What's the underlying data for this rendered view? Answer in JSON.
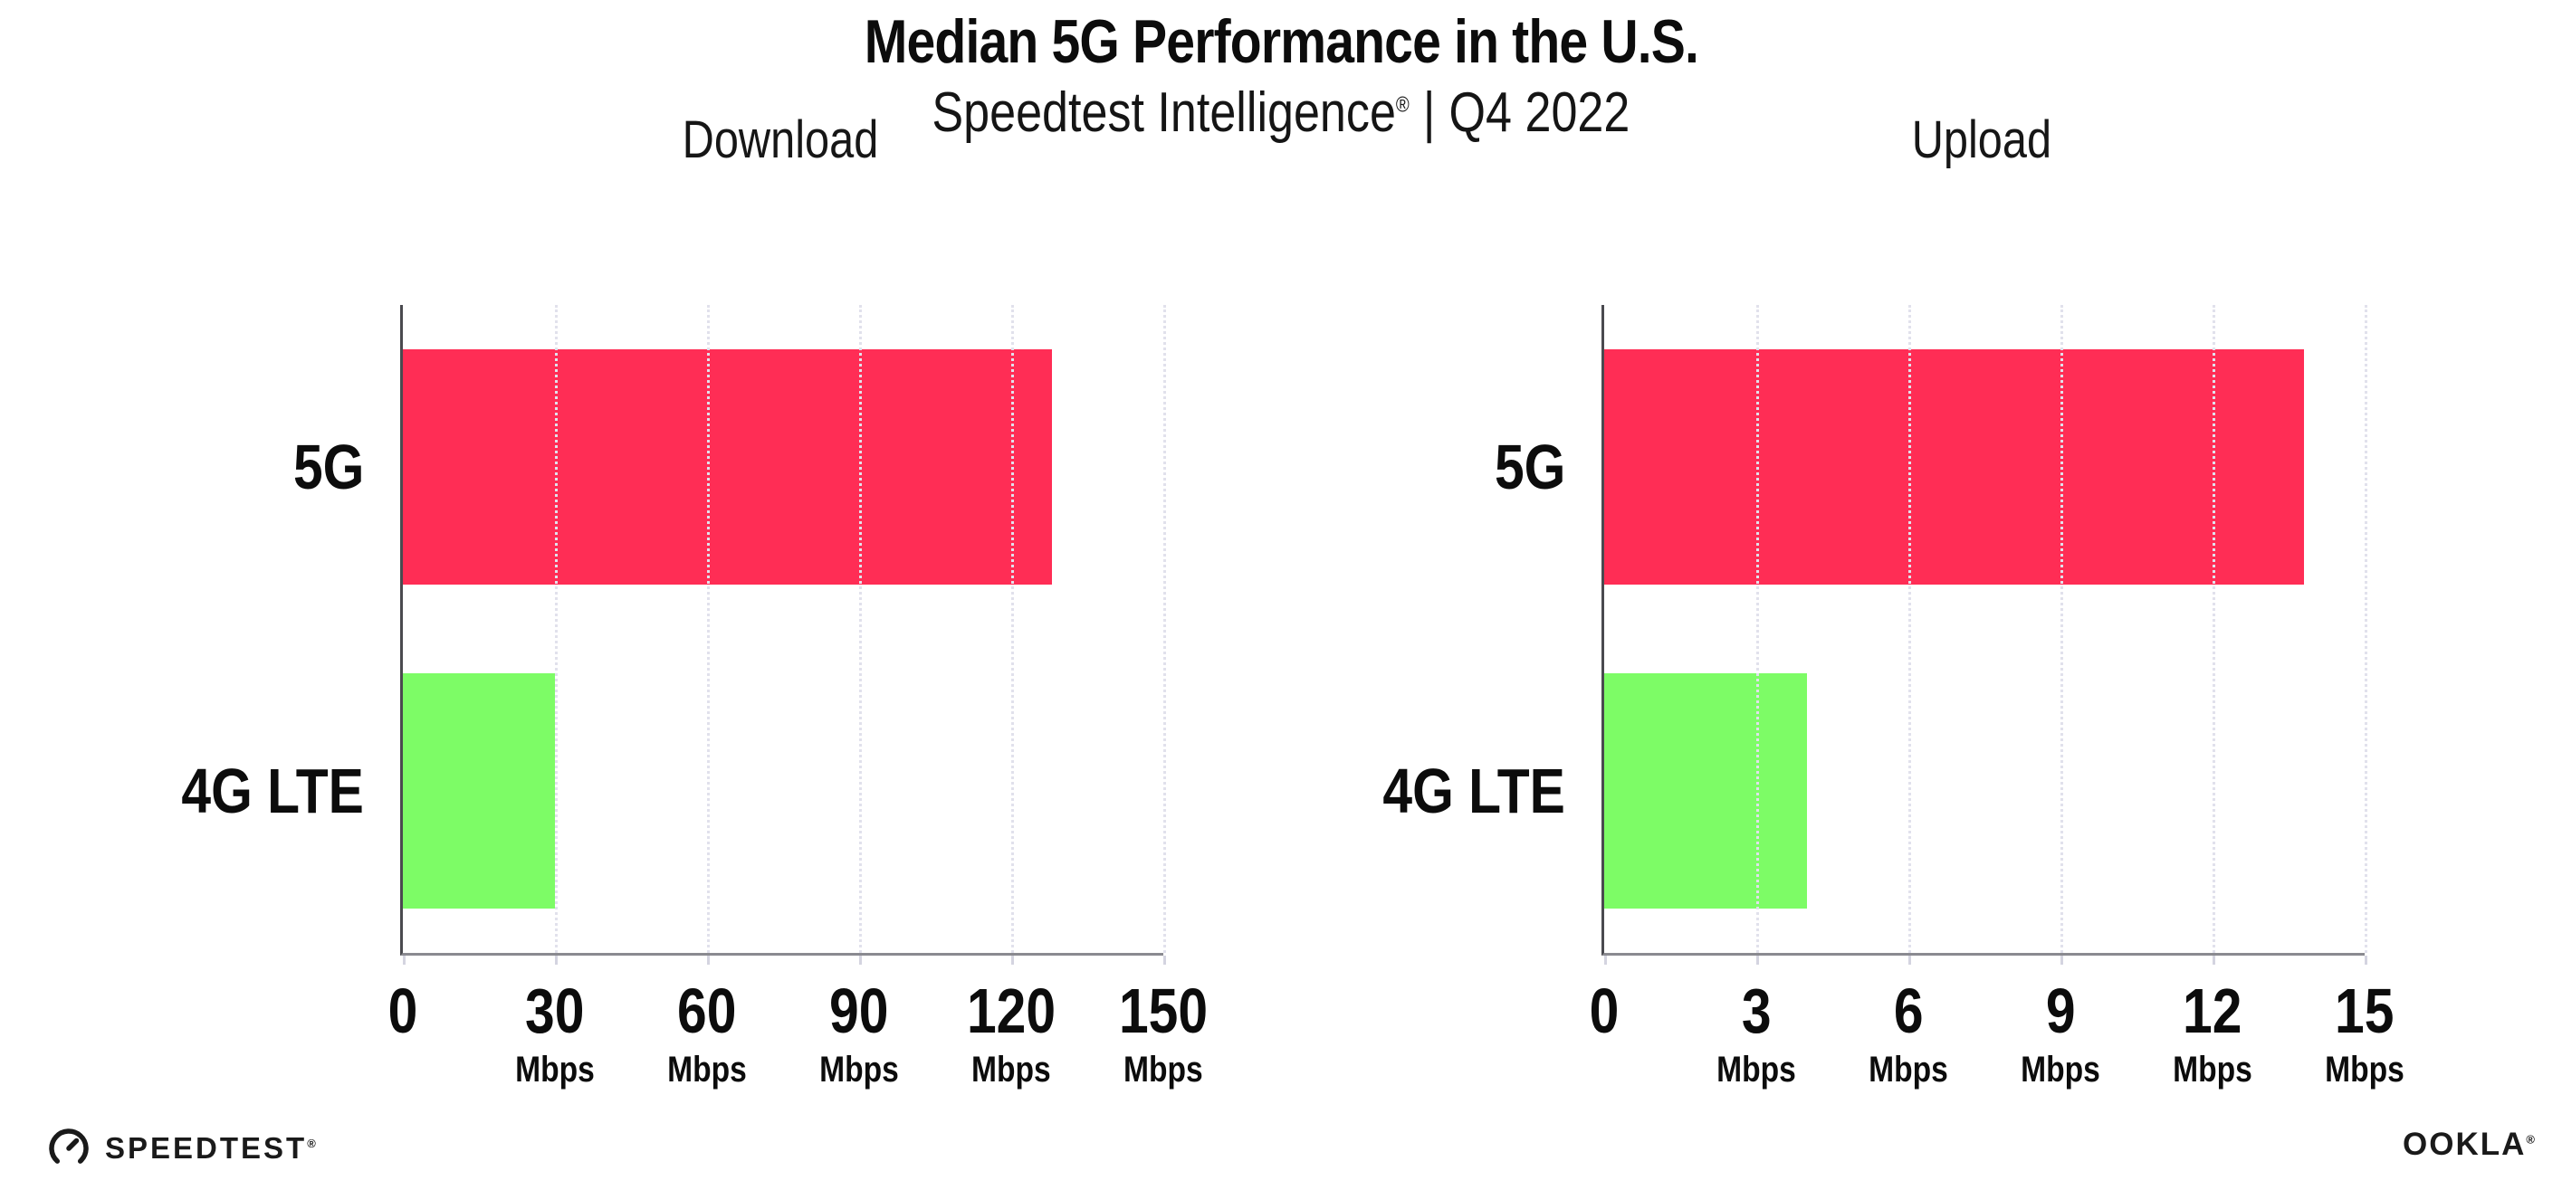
{
  "header": {
    "title": "Median 5G Performance in the U.S.",
    "subtitle": {
      "brand": "Speedtest Intelligence",
      "registered_mark": "®",
      "divider": "|",
      "period": "Q4 2022"
    }
  },
  "chart_data": [
    {
      "type": "bar",
      "orientation": "horizontal",
      "title": "Download",
      "categories": [
        "5G",
        "4G LTE"
      ],
      "values": [
        128,
        30
      ],
      "unit": "Mbps",
      "xlim": [
        0,
        150
      ],
      "xticks": [
        0,
        30,
        60,
        90,
        120,
        150
      ],
      "grid": "vertical-dotted",
      "legend": "none",
      "bar_colors": [
        "#ff2d55",
        "#7dfc66"
      ]
    },
    {
      "type": "bar",
      "orientation": "horizontal",
      "title": "Upload",
      "categories": [
        "5G",
        "4G LTE"
      ],
      "values": [
        13.8,
        4.0
      ],
      "unit": "Mbps",
      "xlim": [
        0,
        15
      ],
      "xticks": [
        0,
        3,
        6,
        9,
        12,
        15
      ],
      "grid": "vertical-dotted",
      "legend": "none",
      "bar_colors": [
        "#ff2d55",
        "#7dfc66"
      ]
    }
  ],
  "colors": {
    "bar_5g": "#ff2d55",
    "bar_4g_lte": "#7dfc66",
    "axis_left_spine": "#4a4a4f",
    "axis_bottom_spine": "#8a8a90",
    "gridline": "#e1e1ec",
    "text": "#0c0c0c",
    "background": "#ffffff"
  },
  "footer": {
    "speedtest": {
      "icon": "speedtest-gauge-icon",
      "label": "SPEEDTEST",
      "mark": "®"
    },
    "ookla": {
      "label": "OOKLA",
      "mark": "®"
    }
  }
}
